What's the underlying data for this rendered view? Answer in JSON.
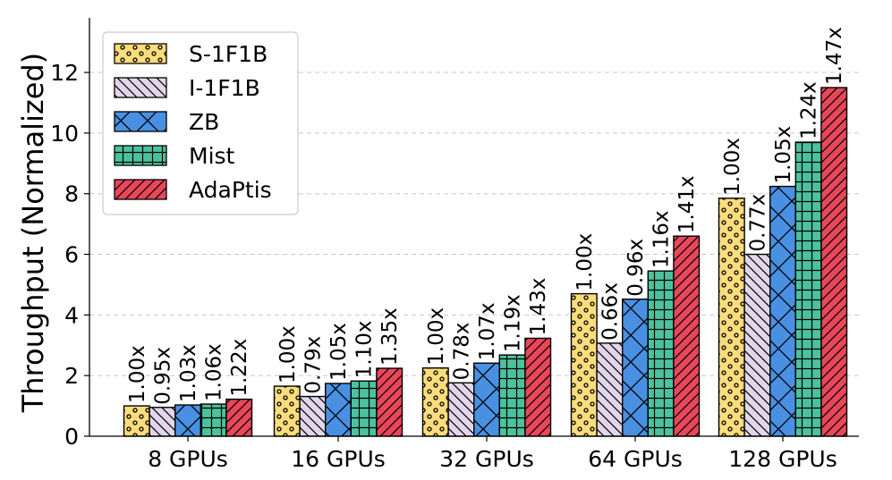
{
  "chart_data": {
    "type": "bar",
    "title": "",
    "xlabel": "",
    "ylabel": "Throughput (Normalized)",
    "ylim": [
      0,
      13.8
    ],
    "yticks": [
      0,
      2,
      4,
      6,
      8,
      10,
      12
    ],
    "grid": "y-dashed",
    "legend_position": "top-left",
    "categories": [
      "8 GPUs",
      "16 GPUs",
      "32 GPUs",
      "64 GPUs",
      "128 GPUs"
    ],
    "series": [
      {
        "name": "S-1F1B",
        "color": "#fcdc7c",
        "pattern": "dots",
        "values": [
          1.0,
          1.65,
          2.25,
          4.7,
          7.85
        ],
        "labels": [
          "1.00x",
          "1.00x",
          "1.00x",
          "1.00x",
          "1.00x"
        ]
      },
      {
        "name": "I-1F1B",
        "color": "#e2d6ea",
        "pattern": "backslash",
        "values": [
          0.95,
          1.31,
          1.76,
          3.07,
          6.0
        ],
        "labels": [
          "0.95x",
          "0.79x",
          "0.78x",
          "0.66x",
          "0.77x"
        ]
      },
      {
        "name": "ZB",
        "color": "#4a90e2",
        "pattern": "cross",
        "values": [
          1.03,
          1.74,
          2.41,
          4.52,
          8.24
        ],
        "labels": [
          "1.03x",
          "1.05x",
          "1.07x",
          "0.96x",
          "1.05x"
        ]
      },
      {
        "name": "Mist",
        "color": "#4cc29c",
        "pattern": "grid",
        "values": [
          1.06,
          1.82,
          2.68,
          5.45,
          9.7
        ],
        "labels": [
          "1.06x",
          "1.10x",
          "1.19x",
          "1.16x",
          "1.24x"
        ]
      },
      {
        "name": "AdaPtis",
        "color": "#e8475a",
        "pattern": "slash",
        "values": [
          1.22,
          2.24,
          3.23,
          6.6,
          11.5
        ],
        "labels": [
          "1.22x",
          "1.35x",
          "1.43x",
          "1.41x",
          "1.47x"
        ]
      }
    ]
  }
}
